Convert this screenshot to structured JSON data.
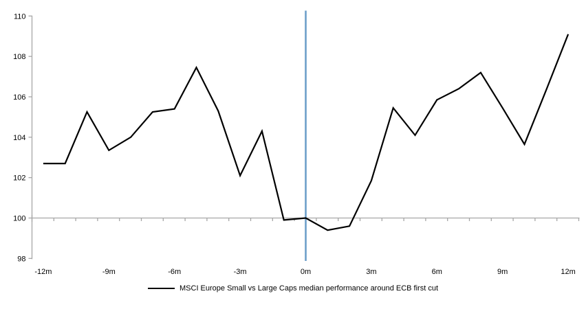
{
  "chart_data": {
    "type": "line",
    "legend_label": "MSCI Europe Small vs Large Caps median performance around ECB first cut",
    "legend_position": "bottom-center",
    "grid": "baseline-only",
    "x": [
      -12,
      -11,
      -10,
      -9,
      -8,
      -7,
      -6,
      -5,
      -4,
      -3,
      -2,
      -1,
      0,
      1,
      2,
      3,
      4,
      5,
      6,
      7,
      8,
      9,
      10,
      11,
      12
    ],
    "series": [
      {
        "name": "MSCI Europe Small vs Large Caps median performance around ECB first cut",
        "values": [
          102.7,
          102.7,
          105.25,
          103.35,
          104.0,
          105.25,
          105.4,
          107.45,
          105.3,
          102.1,
          104.3,
          99.9,
          100.0,
          99.4,
          99.6,
          101.85,
          105.45,
          104.1,
          105.85,
          106.4,
          107.2,
          105.45,
          103.65,
          106.35,
          109.1
        ]
      }
    ],
    "xtick_positions": [
      -12,
      -9,
      -6,
      -3,
      0,
      3,
      6,
      9,
      12
    ],
    "xtick_labels": [
      "-12m",
      "-9m",
      "-6m",
      "-3m",
      "0m",
      "3m",
      "6m",
      "9m",
      "12m"
    ],
    "ytick_values": [
      98,
      100,
      102,
      104,
      106,
      108,
      110
    ],
    "ytick_labels": [
      "98",
      "100",
      "102",
      "104",
      "106",
      "108",
      "110"
    ],
    "ylim": [
      98,
      110
    ],
    "baseline_value": 100,
    "event_line_x": 0,
    "colors": {
      "series_line": "#000000",
      "event_line": "#6D9FCA",
      "axis": "#A6A6A6",
      "label_text": "#000000"
    }
  }
}
